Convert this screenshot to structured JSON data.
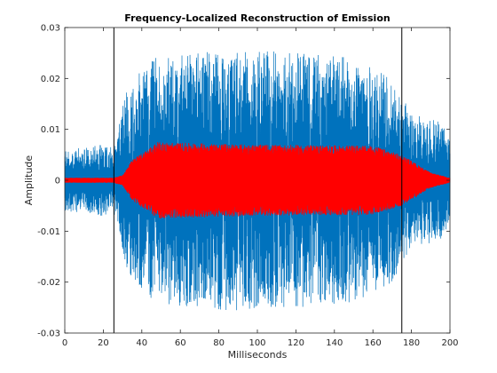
{
  "chart_data": {
    "type": "line",
    "title": "Frequency-Localized Reconstruction of Emission",
    "xlabel": "Milliseconds",
    "ylabel": "Amplitude",
    "xlim": [
      0,
      200
    ],
    "ylim": [
      -0.03,
      0.03
    ],
    "xticks": [
      0,
      20,
      40,
      60,
      80,
      100,
      120,
      140,
      160,
      180,
      200
    ],
    "yticks": [
      -0.03,
      -0.02,
      -0.01,
      0,
      0.01,
      0.02,
      0.03
    ],
    "xtick_labels": [
      "0",
      "20",
      "40",
      "60",
      "80",
      "100",
      "120",
      "140",
      "160",
      "180",
      "200"
    ],
    "ytick_labels": [
      "-0.03",
      "-0.02",
      "-0.01",
      "0",
      "0.01",
      "0.02",
      "0.03"
    ],
    "grid": false,
    "series": [
      {
        "color": "#0072bd",
        "description": "raw emission waveform",
        "envelope": [
          {
            "x": 0,
            "amp": 0.006
          },
          {
            "x": 20,
            "amp": 0.007
          },
          {
            "x": 26,
            "amp": 0.007
          },
          {
            "x": 32,
            "amp": 0.018
          },
          {
            "x": 45,
            "amp": 0.024
          },
          {
            "x": 90,
            "amp": 0.026
          },
          {
            "x": 150,
            "amp": 0.024
          },
          {
            "x": 170,
            "amp": 0.02
          },
          {
            "x": 180,
            "amp": 0.013
          },
          {
            "x": 195,
            "amp": 0.012
          },
          {
            "x": 200,
            "amp": 0.008
          }
        ]
      },
      {
        "color": "#ff0000",
        "description": "frequency-localized reconstruction",
        "envelope": [
          {
            "x": 0,
            "amp": 0.0005
          },
          {
            "x": 25,
            "amp": 0.0005
          },
          {
            "x": 30,
            "amp": 0.001
          },
          {
            "x": 35,
            "amp": 0.004
          },
          {
            "x": 48,
            "amp": 0.0075
          },
          {
            "x": 100,
            "amp": 0.007
          },
          {
            "x": 160,
            "amp": 0.0068
          },
          {
            "x": 175,
            "amp": 0.005
          },
          {
            "x": 190,
            "amp": 0.0015
          },
          {
            "x": 200,
            "amp": 0.0005
          }
        ]
      }
    ],
    "vertical_markers": [
      {
        "x": 25.5,
        "color": "#000000"
      },
      {
        "x": 175,
        "color": "#000000"
      }
    ]
  }
}
